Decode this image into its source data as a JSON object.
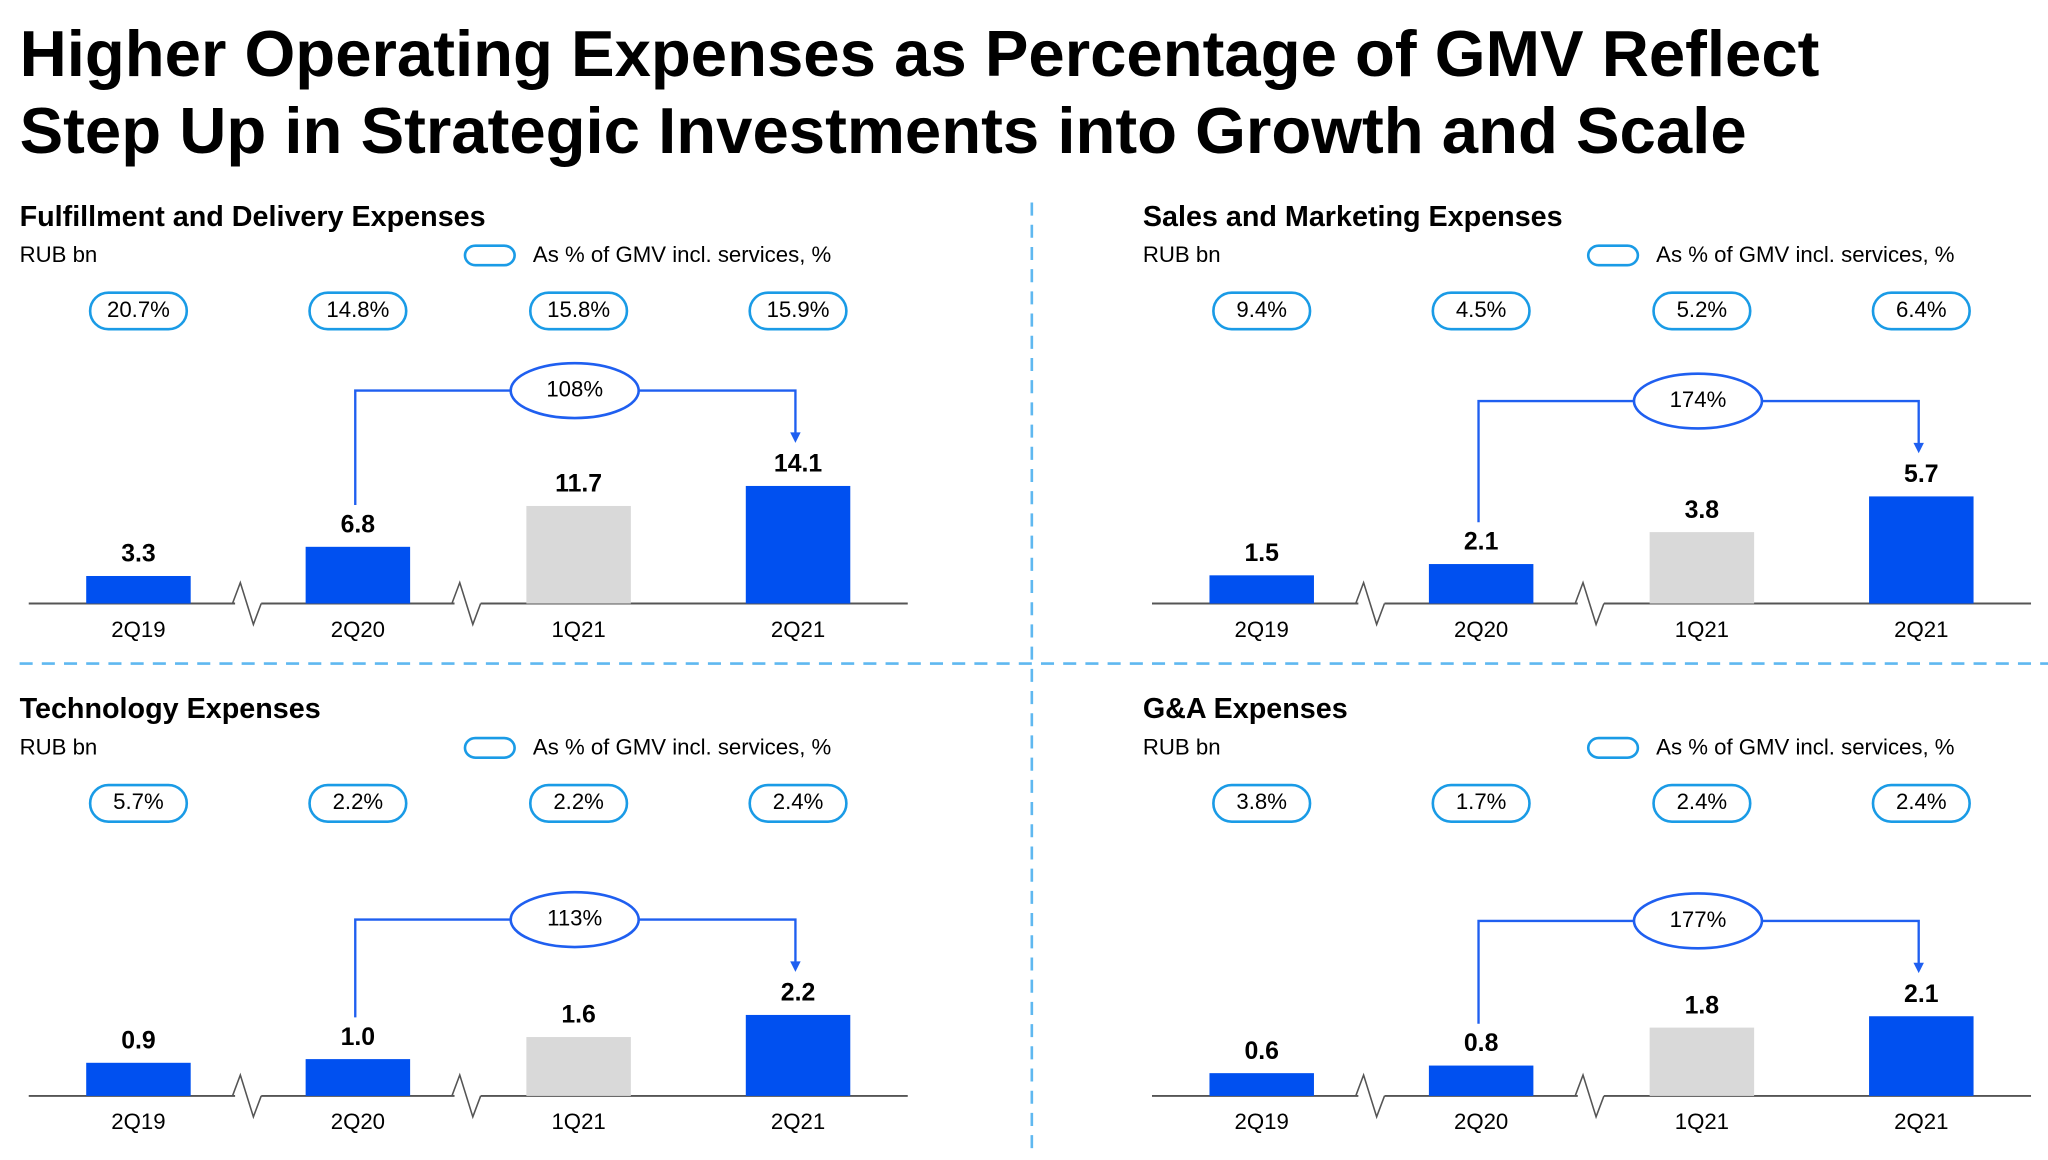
{
  "title": [
    "Higher Operating Expenses as Percentage of GMV Reflect",
    "Step Up in Strategic Investments into Growth and Scale"
  ],
  "chart_data": [
    {
      "type": "bar",
      "title": "Fulfillment and Delivery Expenses",
      "unit": "RUB bn",
      "legend": "As % of GMV incl. services, %",
      "categories": [
        "2Q19",
        "2Q20",
        "1Q21",
        "2Q21"
      ],
      "values": [
        3.3,
        6.8,
        11.7,
        14.1
      ],
      "colors": [
        "#0050f0",
        "#0050f0",
        "#d9d9d9",
        "#0050f0"
      ],
      "gmv_share": [
        "20.7%",
        "14.8%",
        "15.8%",
        "15.9%"
      ],
      "annotation": "108%"
    },
    {
      "type": "bar",
      "title": "Sales and Marketing Expenses",
      "unit": "RUB bn",
      "legend": "As % of GMV incl. services, %",
      "categories": [
        "2Q19",
        "2Q20",
        "1Q21",
        "2Q21"
      ],
      "values": [
        1.5,
        2.1,
        3.8,
        5.7
      ],
      "colors": [
        "#0050f0",
        "#0050f0",
        "#d9d9d9",
        "#0050f0"
      ],
      "gmv_share": [
        "9.4%",
        "4.5%",
        "5.2%",
        "6.4%"
      ],
      "annotation": "174%"
    },
    {
      "type": "bar",
      "title": "Technology Expenses",
      "unit": "RUB bn",
      "legend": "As % of GMV incl. services, %",
      "categories": [
        "2Q19",
        "2Q20",
        "1Q21",
        "2Q21"
      ],
      "values": [
        0.9,
        1,
        1.6,
        2.2
      ],
      "value_labels": [
        "0.9",
        "1.0",
        "1.6",
        "2.2"
      ],
      "colors": [
        "#0050f0",
        "#0050f0",
        "#d9d9d9",
        "#0050f0"
      ],
      "gmv_share": [
        "5.7%",
        "2.2%",
        "2.2%",
        "2.4%"
      ],
      "annotation": "113%"
    },
    {
      "type": "bar",
      "title": "G&A Expenses",
      "unit": "RUB bn",
      "legend": "As % of GMV incl. services, %",
      "categories": [
        "2Q19",
        "2Q20",
        "1Q21",
        "2Q21"
      ],
      "values": [
        0.6,
        0.8,
        1.8,
        2.1
      ],
      "colors": [
        "#0050f0",
        "#0050f0",
        "#d9d9d9",
        "#0050f0"
      ],
      "gmv_share": [
        "3.8%",
        "1.7%",
        "2.4%",
        "2.4%"
      ],
      "annotation": "177%"
    }
  ]
}
